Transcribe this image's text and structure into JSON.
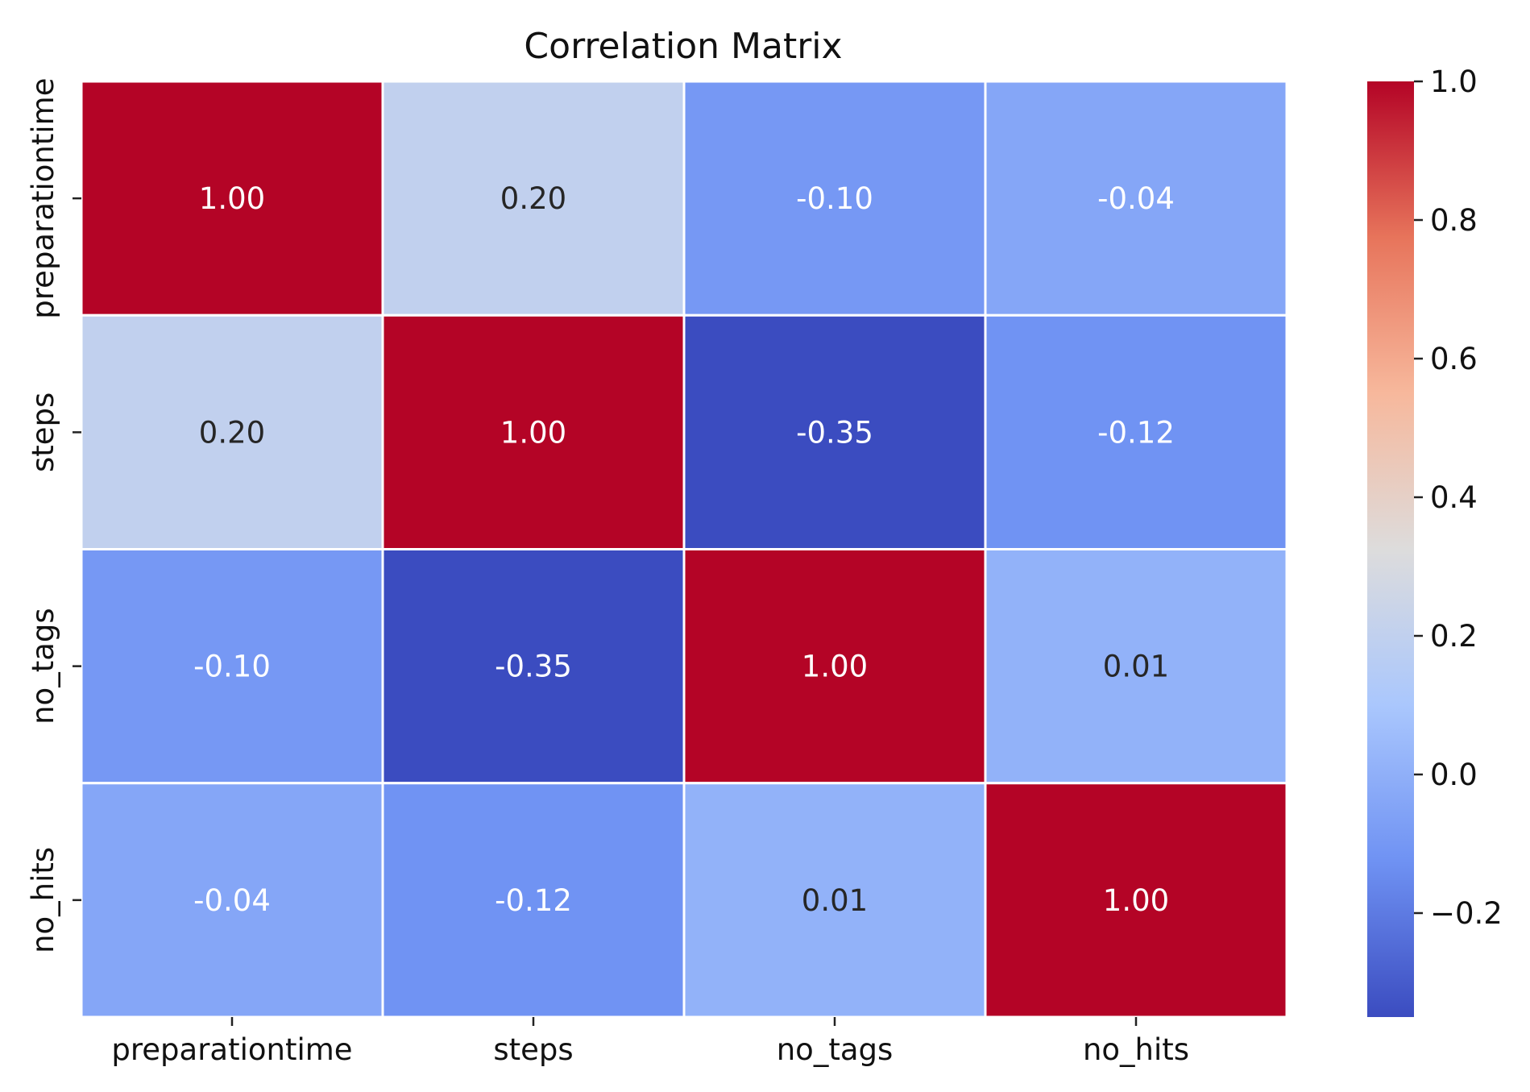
{
  "chart_data": {
    "type": "heatmap",
    "title": "Correlation Matrix",
    "xlabel": "",
    "ylabel": "",
    "x_categories": [
      "preparationtime",
      "steps",
      "no_tags",
      "no_hits"
    ],
    "y_categories": [
      "preparationtime",
      "steps",
      "no_tags",
      "no_hits"
    ],
    "values": [
      [
        1.0,
        0.2,
        -0.1,
        -0.04
      ],
      [
        0.2,
        1.0,
        -0.35,
        -0.12
      ],
      [
        -0.1,
        -0.35,
        1.0,
        0.01
      ],
      [
        -0.04,
        -0.12,
        0.01,
        1.0
      ]
    ],
    "cell_labels": [
      [
        "1.00",
        "0.20",
        "-0.10",
        "-0.04"
      ],
      [
        "0.20",
        "1.00",
        "-0.35",
        "-0.12"
      ],
      [
        "-0.10",
        "-0.35",
        "1.00",
        "0.01"
      ],
      [
        "-0.04",
        "-0.12",
        "0.01",
        "1.00"
      ]
    ],
    "colormap": "coolwarm",
    "vmin": -0.35,
    "vmax": 1.0,
    "colorbar_ticks": [
      {
        "value": 1.0,
        "label": "1.0"
      },
      {
        "value": 0.8,
        "label": "0.8"
      },
      {
        "value": 0.6,
        "label": "0.6"
      },
      {
        "value": 0.4,
        "label": "0.4"
      },
      {
        "value": 0.2,
        "label": "0.2"
      },
      {
        "value": 0.0,
        "label": "0.0"
      },
      {
        "value": -0.2,
        "label": "−0.2"
      }
    ],
    "colormap_stops": [
      "#3b4cc0",
      "#6f92f3",
      "#aac7fd",
      "#dddcdc",
      "#f7b89c",
      "#e7745b",
      "#b40426"
    ],
    "cell_border_color": "#ffffff",
    "annotation_colors": {
      "dark": "#262626",
      "light": "#ffffff"
    }
  }
}
